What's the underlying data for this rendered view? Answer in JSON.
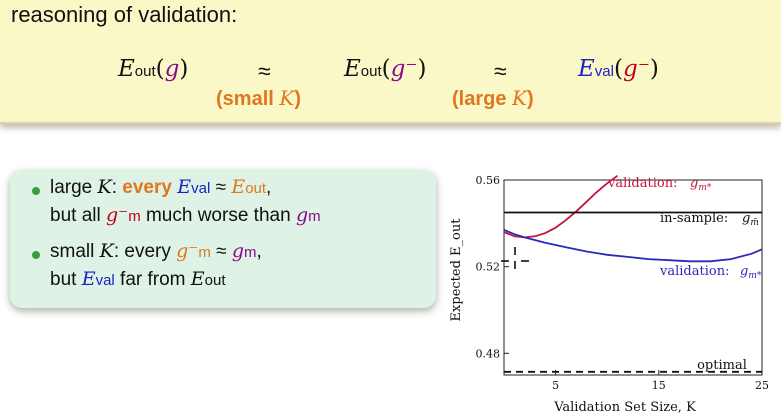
{
  "heading": "reasoning of validation:",
  "top": {
    "E": "E",
    "sub_out": "out",
    "sub_val": "val",
    "g": "g",
    "g_minus": "g⁻",
    "paren_open": "(",
    "paren_close": ")",
    "approx": "≈",
    "note_small": "(small",
    "note_large": "(large",
    "K": "K",
    "close": ")"
  },
  "bullets": {
    "b1_l1_a": "large ",
    "b1_l1_K": "K",
    "b1_l1_b": ": ",
    "b1_l1_every": "every",
    "b1_l1_approx": " ≈ ",
    "b1_l1_end": ",",
    "b1_l2_a": "but all ",
    "b1_l2_b": " much worse than ",
    "b2_l1_a": "small ",
    "b2_l1_K": "K",
    "b2_l1_b": ": every ",
    "b2_l1_approx": " ≈ ",
    "b2_l1_end": ",",
    "b2_l2_a": "but ",
    "b2_l2_b": " far from ",
    "E": "E",
    "sub_val": "val",
    "sub_out": "out",
    "g": "g",
    "g_minus": "g⁻",
    "sub_m": "m"
  },
  "chart_data": {
    "type": "line",
    "xlabel": "Validation Set Size, K",
    "ylabel": "Expected E_out",
    "xlim": [
      0,
      25
    ],
    "ylim": [
      0.47,
      0.56
    ],
    "xticks": [
      5,
      15,
      25
    ],
    "yticks": [
      0.48,
      0.52,
      0.56
    ],
    "series": [
      {
        "name": "validation: g⁻ m*",
        "color": "#c1163c",
        "x": [
          0,
          1,
          2,
          3,
          4,
          5,
          6,
          7,
          8,
          9,
          10,
          11
        ],
        "y": [
          0.536,
          0.534,
          0.5335,
          0.534,
          0.5355,
          0.538,
          0.5415,
          0.5455,
          0.55,
          0.5545,
          0.5585,
          0.562
        ]
      },
      {
        "name": "in-sample: g m̃",
        "color": "#111111",
        "x": [
          0,
          25
        ],
        "y": [
          0.545,
          0.545
        ]
      },
      {
        "name": "validation: g m*",
        "color": "#2a2ab8",
        "x": [
          0,
          1,
          2,
          4,
          6,
          8,
          10,
          12,
          14,
          16,
          18,
          20,
          22,
          24,
          25
        ],
        "y": [
          0.537,
          0.535,
          0.5335,
          0.531,
          0.529,
          0.527,
          0.5255,
          0.5245,
          0.5235,
          0.523,
          0.5225,
          0.5225,
          0.5235,
          0.526,
          0.528
        ]
      },
      {
        "name": "optimal",
        "color": "#111111",
        "dashed": true,
        "x": [
          0,
          25
        ],
        "y": [
          0.4715,
          0.4715
        ]
      }
    ],
    "labels": {
      "validation_minus": "validation:",
      "in_sample": "in-sample:",
      "validation": "validation:",
      "optimal": "optimal"
    }
  }
}
